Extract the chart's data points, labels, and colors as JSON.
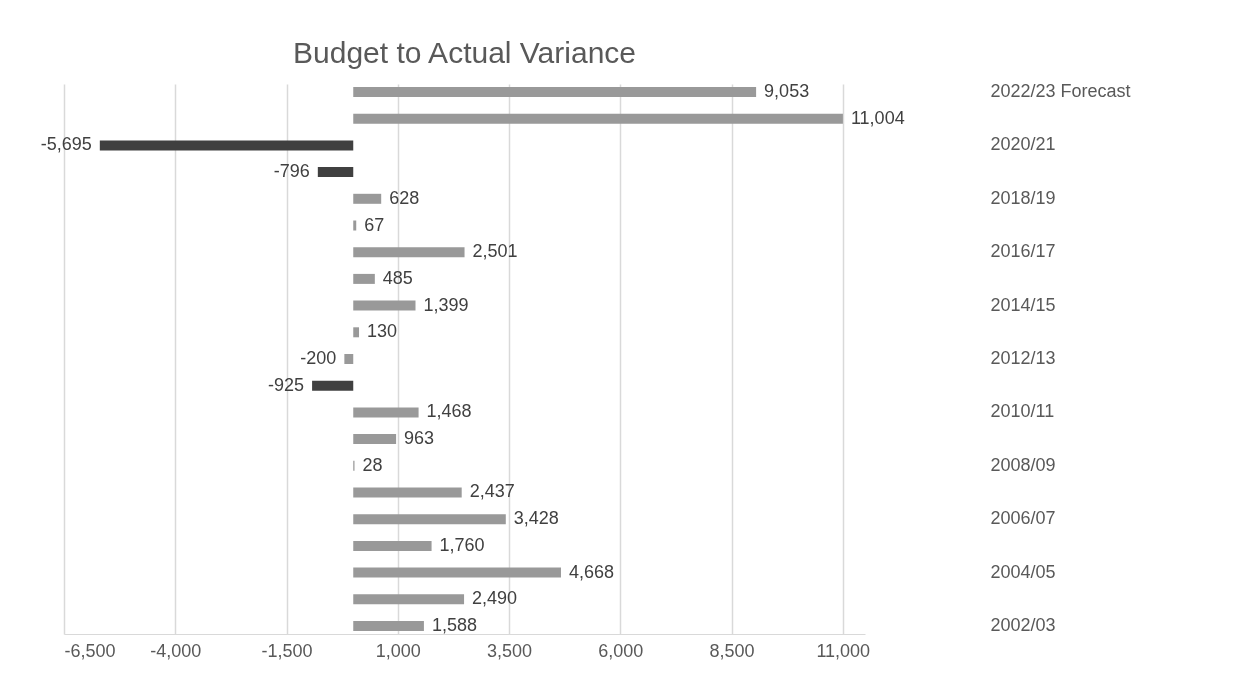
{
  "chart_data": {
    "type": "bar",
    "orientation": "horizontal",
    "title": "Budget to Actual Variance",
    "categories": [
      "2022/23 Forecast",
      null,
      "2020/21",
      null,
      "2018/19",
      null,
      "2016/17",
      null,
      "2014/15",
      null,
      "2012/13",
      null,
      "2010/11",
      null,
      "2008/09",
      null,
      "2006/07",
      null,
      "2004/05",
      null,
      "2002/03"
    ],
    "values": [
      9053,
      11004,
      -5695,
      -796,
      628,
      67,
      2501,
      485,
      1399,
      130,
      -200,
      -925,
      1468,
      963,
      28,
      2437,
      3428,
      1760,
      4668,
      2490,
      1588
    ],
    "value_labels": [
      "9,053",
      "11,004",
      "-5,695",
      "-796",
      "628",
      "67",
      "2,501",
      "485",
      "1,399",
      "130",
      "-200",
      "-925",
      "1,468",
      "963",
      "28",
      "2,437",
      "3,428",
      "1,760",
      "4,668",
      "2,490",
      "1,588"
    ],
    "colors": [
      "#999999",
      "#999999",
      "#404040",
      "#404040",
      "#999999",
      "#999999",
      "#999999",
      "#999999",
      "#999999",
      "#999999",
      "#999999",
      "#404040",
      "#999999",
      "#999999",
      "#999999",
      "#999999",
      "#999999",
      "#999999",
      "#999999",
      "#999999",
      "#999999"
    ],
    "xlim": [
      -6500,
      11500
    ],
    "xticks": [
      {
        "value": -6500,
        "label": "-6,500"
      },
      {
        "value": -4000,
        "label": "-4,000"
      },
      {
        "value": -1500,
        "label": "-1,500"
      },
      {
        "value": 1000,
        "label": "1,000"
      },
      {
        "value": 3500,
        "label": "3,500"
      },
      {
        "value": 6000,
        "label": "6,000"
      },
      {
        "value": 8500,
        "label": "8,500"
      },
      {
        "value": 11000,
        "label": "11,000"
      }
    ],
    "grid": "x"
  }
}
